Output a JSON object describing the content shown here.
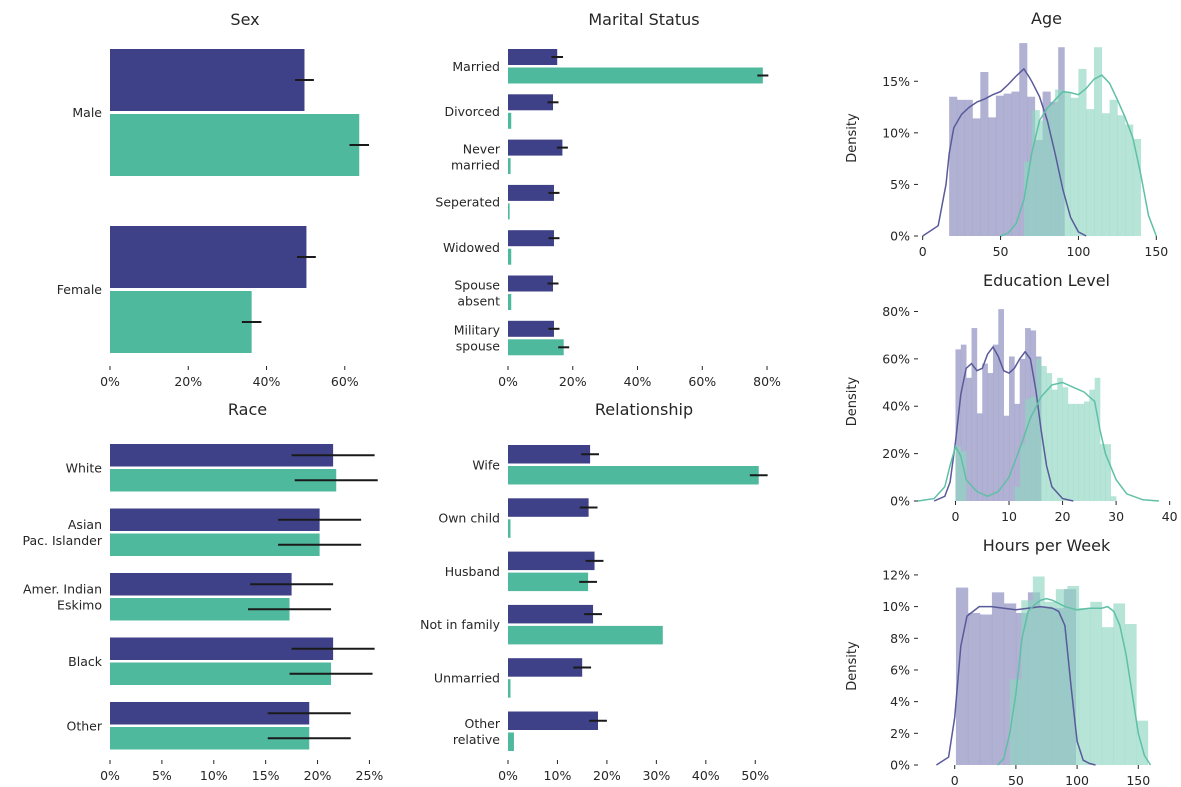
{
  "colors": {
    "series_a": "#3f4188",
    "series_b": "#4fb99d",
    "error_bar": "#1a1a1a"
  },
  "chart_data": [
    {
      "id": "sex",
      "type": "bar",
      "orientation": "horizontal",
      "title": "Sex",
      "categories": [
        "Male",
        "Female"
      ],
      "series": [
        {
          "values": [
            0.497,
            0.502
          ],
          "err": [
            0.024,
            0.024
          ]
        },
        {
          "values": [
            0.637,
            0.362
          ],
          "err": [
            0.025,
            0.025
          ]
        }
      ],
      "xlim": [
        0,
        0.69
      ],
      "xticks": [
        0,
        0.2,
        0.4,
        0.6
      ],
      "xtick_labels": [
        "0%",
        "20%",
        "40%",
        "60%"
      ]
    },
    {
      "id": "marital",
      "type": "bar",
      "orientation": "horizontal",
      "title": "Marital Status",
      "categories": [
        "Married",
        "Divorced",
        "Never married",
        "Seperated",
        "Widowed",
        "Spouse absent",
        "Military spouse"
      ],
      "category_lines": [
        [
          "Married"
        ],
        [
          "Divorced"
        ],
        [
          "Never",
          "married"
        ],
        [
          "Seperated"
        ],
        [
          "Widowed"
        ],
        [
          "Spouse",
          "absent"
        ],
        [
          "Military",
          "spouse"
        ]
      ],
      "series": [
        {
          "values": [
            0.152,
            0.139,
            0.168,
            0.142,
            0.142,
            0.139,
            0.142
          ],
          "err": [
            0.018,
            0.017,
            0.017,
            0.017,
            0.017,
            0.017,
            0.017
          ]
        },
        {
          "values": [
            0.787,
            0.01,
            0.008,
            0.005,
            0.01,
            0.01,
            0.172
          ],
          "err": [
            0.017,
            0,
            0,
            0,
            0,
            0,
            0.017
          ]
        }
      ],
      "xlim": [
        0,
        0.84
      ],
      "xticks": [
        0,
        0.2,
        0.4,
        0.6,
        0.8
      ],
      "xtick_labels": [
        "0%",
        "20%",
        "40%",
        "60%",
        "80%"
      ]
    },
    {
      "id": "race",
      "type": "bar",
      "orientation": "horizontal",
      "title": "Race",
      "categories": [
        "White",
        "Asian Pac. Islander",
        "Amer. Indian Eskimo",
        "Black",
        "Other"
      ],
      "category_lines": [
        [
          "White"
        ],
        [
          "Asian",
          "Pac. Islander"
        ],
        [
          "Amer. Indian",
          "Eskimo"
        ],
        [
          "Black"
        ],
        [
          "Other"
        ]
      ],
      "series": [
        {
          "values": [
            0.215,
            0.202,
            0.175,
            0.215,
            0.192
          ],
          "err": [
            0.04,
            0.04,
            0.04,
            0.04,
            0.04
          ]
        },
        {
          "values": [
            0.218,
            0.202,
            0.173,
            0.213,
            0.192
          ],
          "err": [
            0.04,
            0.04,
            0.04,
            0.04,
            0.04
          ]
        }
      ],
      "xlim": [
        0,
        0.265
      ],
      "xticks": [
        0,
        0.05,
        0.1,
        0.15,
        0.2,
        0.25
      ],
      "xtick_labels": [
        "0%",
        "5%",
        "10%",
        "15%",
        "20%",
        "25%"
      ]
    },
    {
      "id": "relationship",
      "type": "bar",
      "orientation": "horizontal",
      "title": "Relationship",
      "categories": [
        "Wife",
        "Own child",
        "Husband",
        "Not in family",
        "Unmarried",
        "Other relative"
      ],
      "category_lines": [
        [
          "Wife"
        ],
        [
          "Own child"
        ],
        [
          "Husband"
        ],
        [
          "Not in family"
        ],
        [
          "Unmarried"
        ],
        [
          "Other",
          "relative"
        ]
      ],
      "series": [
        {
          "values": [
            0.166,
            0.163,
            0.175,
            0.172,
            0.15,
            0.182
          ],
          "err": [
            0.018,
            0.018,
            0.018,
            0.018,
            0.018,
            0.018
          ]
        },
        {
          "values": [
            0.507,
            0.005,
            0.162,
            0.313,
            0.005,
            0.012
          ],
          "err": [
            0.018,
            0,
            0.018,
            0,
            0,
            0
          ]
        }
      ],
      "xlim": [
        0,
        0.55
      ],
      "xticks": [
        0,
        0.1,
        0.2,
        0.3,
        0.4,
        0.5
      ],
      "xtick_labels": [
        "0%",
        "10%",
        "20%",
        "30%",
        "40%",
        "50%"
      ]
    },
    {
      "id": "age",
      "type": "histogram",
      "title": "Age",
      "ylabel": "Density",
      "xlim": [
        -3,
        162
      ],
      "xticks": [
        0,
        50,
        100,
        150
      ],
      "xtick_labels": [
        "0",
        "50",
        "100",
        "150"
      ],
      "ylim": [
        0,
        0.19
      ],
      "yticks": [
        0,
        0.05,
        0.1,
        0.15
      ],
      "ytick_labels": [
        "0%",
        "5%",
        "10%",
        "15%"
      ],
      "series": [
        {
          "edges": [
            17,
            22,
            27,
            32,
            37,
            42,
            47,
            52,
            57,
            62,
            67,
            72,
            77,
            82,
            87,
            91
          ],
          "heights": [
            0.135,
            0.132,
            0.132,
            0.114,
            0.159,
            0.115,
            0.136,
            0.138,
            0.14,
            0.187,
            0.135,
            0.093,
            0.14,
            0.13,
            0.183
          ],
          "kde_x": [
            0,
            10,
            15,
            17,
            20,
            25,
            30,
            35,
            40,
            45,
            50,
            55,
            60,
            65,
            68,
            70,
            75,
            80,
            85,
            90,
            95,
            100,
            105
          ],
          "kde_y": [
            0,
            0.01,
            0.05,
            0.08,
            0.105,
            0.118,
            0.125,
            0.13,
            0.133,
            0.137,
            0.14,
            0.147,
            0.155,
            0.162,
            0.155,
            0.15,
            0.135,
            0.112,
            0.08,
            0.045,
            0.018,
            0.004,
            0
          ]
        },
        {
          "edges": [
            65,
            70,
            75,
            80,
            85,
            90,
            95,
            100,
            105,
            110,
            115,
            120,
            125,
            130,
            135,
            140
          ],
          "heights": [
            0.072,
            0.122,
            0.112,
            0.127,
            0.142,
            0.139,
            0.134,
            0.162,
            0.123,
            0.183,
            0.119,
            0.132,
            0.117,
            0.108,
            0.094
          ],
          "kde_x": [
            50,
            55,
            60,
            65,
            70,
            75,
            80,
            85,
            90,
            95,
            100,
            105,
            110,
            115,
            120,
            125,
            130,
            135,
            140,
            145,
            150
          ],
          "kde_y": [
            0,
            0.003,
            0.012,
            0.035,
            0.08,
            0.112,
            0.124,
            0.132,
            0.14,
            0.139,
            0.137,
            0.143,
            0.152,
            0.156,
            0.148,
            0.132,
            0.115,
            0.095,
            0.06,
            0.02,
            0
          ]
        }
      ]
    },
    {
      "id": "education",
      "type": "histogram",
      "title": "Education Level",
      "ylabel": "Density",
      "xlim": [
        -7,
        41
      ],
      "xticks": [
        0,
        10,
        20,
        30,
        40
      ],
      "xtick_labels": [
        "0",
        "10",
        "20",
        "30",
        "40"
      ],
      "ylim": [
        0,
        0.84
      ],
      "yticks": [
        0,
        0.2,
        0.4,
        0.6,
        0.8
      ],
      "ytick_labels": [
        "0%",
        "20%",
        "40%",
        "60%",
        "80%"
      ],
      "series": [
        {
          "edges": [
            0,
            1,
            2,
            3,
            4,
            5,
            6,
            7,
            8,
            9,
            10,
            11,
            12,
            13,
            14,
            15,
            16
          ],
          "heights": [
            0.64,
            0.66,
            0.52,
            0.73,
            0.37,
            0.58,
            0.54,
            0.66,
            0.81,
            0.36,
            0.61,
            0.41,
            0.6,
            0.73,
            0.72,
            0.61
          ],
          "kde_x": [
            -4,
            -2,
            -1,
            0,
            1,
            2,
            3,
            4,
            5,
            6,
            7,
            8,
            9,
            10,
            11,
            12,
            13,
            14,
            15,
            16,
            17,
            18,
            20,
            22
          ],
          "kde_y": [
            0,
            0.02,
            0.08,
            0.25,
            0.45,
            0.56,
            0.58,
            0.55,
            0.56,
            0.62,
            0.65,
            0.61,
            0.55,
            0.54,
            0.56,
            0.6,
            0.63,
            0.6,
            0.47,
            0.3,
            0.15,
            0.06,
            0.01,
            0
          ]
        },
        {
          "edges": [
            0,
            1,
            2,
            11,
            12,
            13,
            14,
            15,
            16,
            17,
            18,
            19,
            20,
            21,
            22,
            23,
            24,
            25,
            26,
            27,
            28,
            29,
            30
          ],
          "heights": [
            0.23,
            0.21,
            0,
            0.06,
            0.24,
            0.43,
            0.44,
            0.6,
            0.57,
            0.54,
            0.47,
            0.52,
            0.48,
            0.41,
            0.41,
            0.41,
            0.42,
            0.47,
            0.52,
            0.24,
            0.24,
            0.02
          ],
          "kde_x": [
            -7,
            -4,
            -2,
            -1,
            0,
            1,
            2,
            4,
            6,
            8,
            10,
            12,
            14,
            16,
            18,
            20,
            22,
            24,
            26,
            27,
            28,
            30,
            32,
            35,
            38
          ],
          "kde_y": [
            0,
            0.01,
            0.06,
            0.15,
            0.23,
            0.19,
            0.09,
            0.04,
            0.02,
            0.04,
            0.1,
            0.22,
            0.35,
            0.44,
            0.49,
            0.5,
            0.48,
            0.46,
            0.42,
            0.3,
            0.2,
            0.09,
            0.03,
            0.005,
            0
          ]
        }
      ]
    },
    {
      "id": "hours",
      "type": "histogram",
      "title": "Hours per Week",
      "ylabel": "Density",
      "xlim": [
        -30,
        180
      ],
      "xticks": [
        0,
        50,
        100,
        150
      ],
      "xtick_labels": [
        "0",
        "50",
        "100",
        "150"
      ],
      "ylim": [
        0,
        0.125
      ],
      "yticks": [
        0,
        0.02,
        0.04,
        0.06,
        0.08,
        0.1,
        0.12
      ],
      "ytick_labels": [
        "0%",
        "2%",
        "4%",
        "6%",
        "8%",
        "10%",
        "12%"
      ],
      "series": [
        {
          "edges": [
            1,
            10.8,
            20.6,
            30.4,
            40.2,
            50,
            59.8,
            69.6,
            79.4,
            89.2,
            99
          ],
          "heights": [
            0.112,
            0.096,
            0.095,
            0.109,
            0.102,
            0.096,
            0.109,
            0.1,
            0.099,
            0.111
          ],
          "kde_x": [
            -15,
            -5,
            0,
            5,
            10,
            20,
            30,
            40,
            50,
            60,
            70,
            80,
            85,
            90,
            95,
            100,
            105,
            110,
            115
          ],
          "kde_y": [
            0,
            0.005,
            0.03,
            0.075,
            0.094,
            0.1,
            0.1,
            0.099,
            0.098,
            0.099,
            0.1,
            0.099,
            0.097,
            0.088,
            0.05,
            0.015,
            0.003,
            0.001,
            0
          ]
        },
        {
          "edges": [
            45,
            54.4,
            63.8,
            73.2,
            82.6,
            92,
            101.4,
            110.8,
            120.2,
            129.6,
            139,
            148.4,
            157.8
          ],
          "heights": [
            0.054,
            0.104,
            0.119,
            0.103,
            0.111,
            0.113,
            0.099,
            0.103,
            0.087,
            0.102,
            0.089,
            0.028
          ],
          "kde_x": [
            35,
            40,
            45,
            50,
            55,
            60,
            65,
            70,
            75,
            80,
            90,
            100,
            110,
            120,
            125,
            130,
            135,
            140,
            145,
            150,
            155,
            160
          ],
          "kde_y": [
            0,
            0.004,
            0.02,
            0.045,
            0.08,
            0.097,
            0.101,
            0.104,
            0.105,
            0.104,
            0.1,
            0.098,
            0.099,
            0.099,
            0.1,
            0.097,
            0.088,
            0.07,
            0.045,
            0.02,
            0.006,
            0
          ]
        }
      ]
    }
  ]
}
